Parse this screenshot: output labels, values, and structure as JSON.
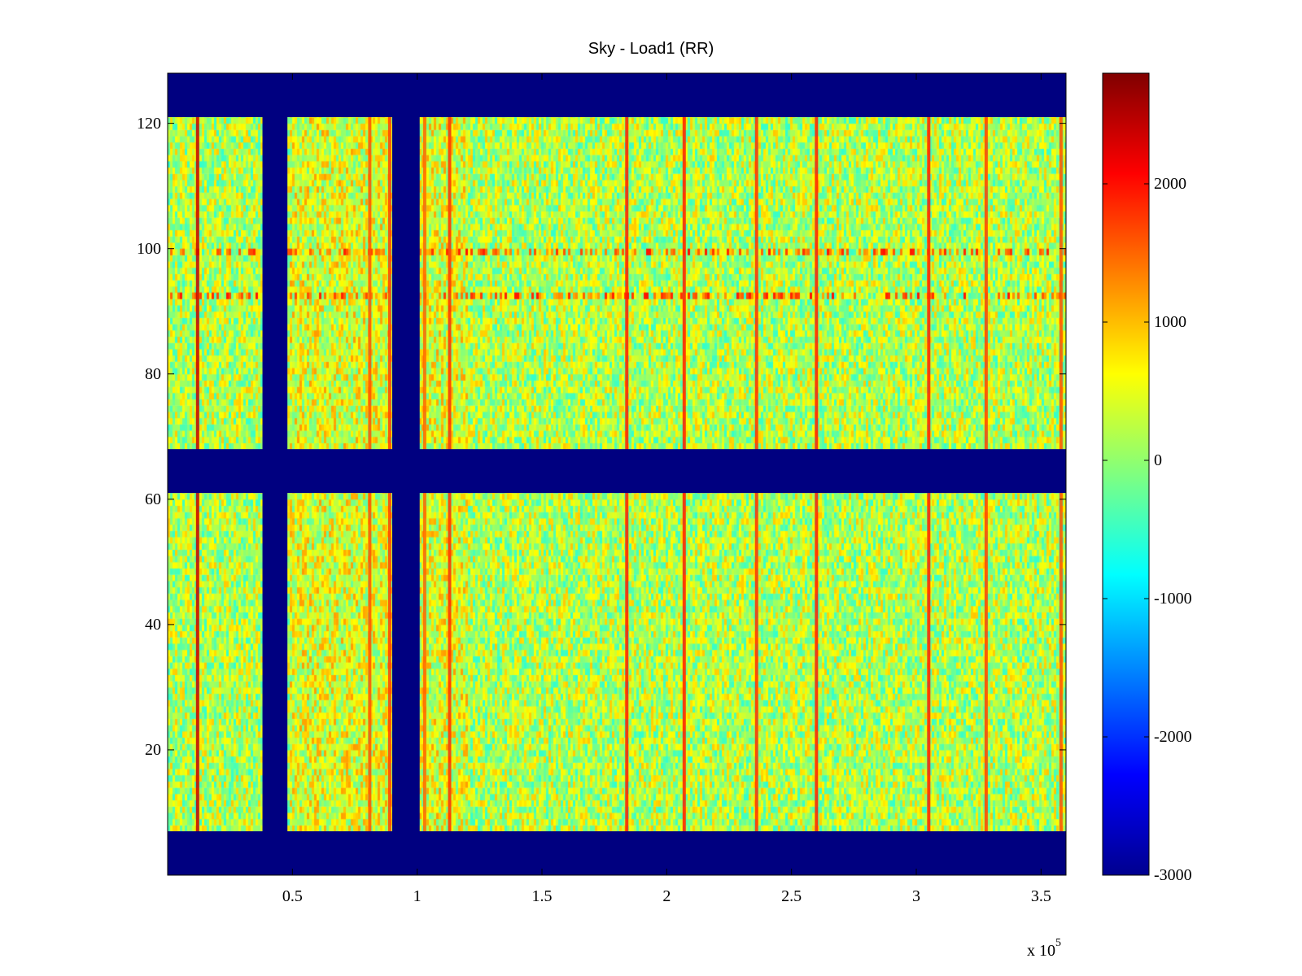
{
  "chart_data": {
    "type": "heatmap",
    "title": "Sky - Load1 (RR)",
    "xlabel": "",
    "ylabel": "",
    "xlim": [
      0,
      360000
    ],
    "ylim": [
      0,
      128
    ],
    "x_ticks": [
      {
        "value": 50000,
        "label": "0.5"
      },
      {
        "value": 100000,
        "label": "1"
      },
      {
        "value": 150000,
        "label": "1.5"
      },
      {
        "value": 200000,
        "label": "2"
      },
      {
        "value": 250000,
        "label": "2.5"
      },
      {
        "value": 300000,
        "label": "3"
      },
      {
        "value": 350000,
        "label": "3.5"
      }
    ],
    "x_multiplier": {
      "base": "x 10",
      "exponent": "5"
    },
    "y_ticks": [
      {
        "value": 20,
        "label": "20"
      },
      {
        "value": 40,
        "label": "40"
      },
      {
        "value": 60,
        "label": "60"
      },
      {
        "value": 80,
        "label": "80"
      },
      {
        "value": 100,
        "label": "100"
      },
      {
        "value": 120,
        "label": "120"
      }
    ],
    "colorbar": {
      "colormap": "jet",
      "range": [
        -3000,
        2800
      ],
      "ticks": [
        {
          "value": 2000,
          "label": "2000"
        },
        {
          "value": 1000,
          "label": "1000"
        },
        {
          "value": 0,
          "label": "0"
        },
        {
          "value": -1000,
          "label": "-1000"
        },
        {
          "value": -2000,
          "label": "-2000"
        },
        {
          "value": -3000,
          "label": "-3000"
        }
      ]
    },
    "background_mean": 200,
    "masked_value": -3000,
    "masked_channel_bands": [
      [
        0,
        7
      ],
      [
        61,
        68
      ],
      [
        121,
        128
      ]
    ],
    "masked_time_bands": [
      [
        38000,
        48000
      ],
      [
        90000,
        101000
      ]
    ],
    "bright_time_lines": [
      {
        "x": 12000,
        "value": 2400
      },
      {
        "x": 81000,
        "value": 1600
      },
      {
        "x": 89000,
        "value": 1700
      },
      {
        "x": 103000,
        "value": 1500
      },
      {
        "x": 113000,
        "value": 1800
      },
      {
        "x": 184000,
        "value": 1900
      },
      {
        "x": 207000,
        "value": 1900
      },
      {
        "x": 236000,
        "value": 1800
      },
      {
        "x": 260000,
        "value": 1900
      },
      {
        "x": 305000,
        "value": 1900
      },
      {
        "x": 328000,
        "value": 1700
      },
      {
        "x": 358000,
        "value": 1600
      }
    ],
    "rfi_channels": [
      {
        "channel": 99,
        "value": 1800
      },
      {
        "channel": 92,
        "value": 1800
      }
    ]
  }
}
